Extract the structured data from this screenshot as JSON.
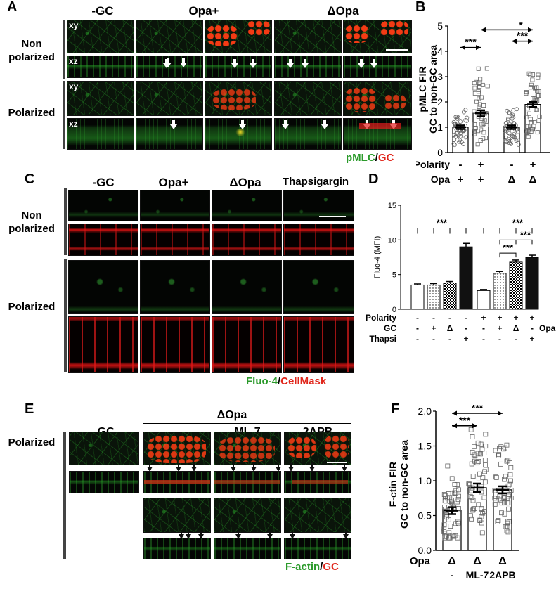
{
  "panels": {
    "A": {
      "letter": "A",
      "columns": [
        "-GC",
        "Opa+",
        "ΔOpa"
      ],
      "rows": [
        "Non polarized",
        "Polarized"
      ],
      "view_labels": {
        "xy": "xy",
        "xz": "xz"
      },
      "legend_green": "pMLC",
      "legend_sep": "/",
      "legend_red": "GC"
    },
    "C": {
      "letter": "C",
      "columns": [
        "-GC",
        "Opa+",
        "ΔOpa",
        "Thapsigargin"
      ],
      "rows": [
        "Non polarized",
        "Polarized"
      ],
      "legend_green": "Fluo-4",
      "legend_sep": "/",
      "legend_red": "CellMask"
    },
    "E": {
      "letter": "E",
      "group_label": "ΔOpa",
      "columns": [
        "-GC",
        "-",
        "ML-7",
        "2APB"
      ],
      "row": "Polarized",
      "legend_green": "F-actin",
      "legend_sep": "/",
      "legend_red": "GC"
    },
    "B": {
      "letter": "B"
    },
    "D": {
      "letter": "D"
    },
    "F": {
      "letter": "F"
    }
  },
  "chart_data": [
    {
      "id": "B",
      "type": "bar",
      "ylabel": "pMLC FIR\nGC to non-GC area",
      "ylim": [
        0,
        5
      ],
      "yticks": [
        "0",
        "1",
        "2",
        "3",
        "4",
        "5"
      ],
      "values": [
        1.0,
        1.55,
        1.0,
        1.9
      ],
      "errors": [
        0.07,
        0.12,
        0.07,
        0.1
      ],
      "scatter_marker": "open-circle / open-square",
      "condition_rows": [
        {
          "label": "Polarity",
          "values": [
            "-",
            "+",
            "-",
            "+"
          ]
        },
        {
          "label": "Opa",
          "values": [
            "+",
            "+",
            "Δ",
            "Δ"
          ]
        }
      ],
      "significance": [
        {
          "pair": [
            0,
            1
          ],
          "label": "***"
        },
        {
          "pair": [
            1,
            3
          ],
          "label": "*"
        },
        {
          "pair": [
            2,
            3
          ],
          "label": "***"
        }
      ]
    },
    {
      "id": "D",
      "type": "bar",
      "ylabel": "Fluo-4 (MFI)",
      "ylim": [
        0,
        15
      ],
      "yticks": [
        "0",
        "5",
        "10",
        "15"
      ],
      "values": [
        3.5,
        3.5,
        3.8,
        9.0,
        2.7,
        5.2,
        6.8,
        7.5
      ],
      "errors": [
        0.15,
        0.2,
        0.2,
        0.5,
        0.15,
        0.25,
        0.3,
        0.3
      ],
      "fills": [
        "white",
        "dots",
        "checker",
        "black",
        "white",
        "dots",
        "checker",
        "black"
      ],
      "condition_rows": [
        {
          "label": "Polarity",
          "values": [
            "-",
            "-",
            "-",
            "-",
            "+",
            "+",
            "+",
            "+"
          ]
        },
        {
          "label": "GC",
          "values": [
            "-",
            "+",
            "Δ",
            "-",
            "-",
            "+",
            "Δ",
            "-"
          ],
          "suffix": "Opa"
        },
        {
          "label": "Thapsi",
          "values": [
            "-",
            "-",
            "-",
            "+",
            "-",
            "-",
            "-",
            "+"
          ]
        }
      ],
      "significance_labels": [
        "***",
        "***",
        "***",
        "***"
      ]
    },
    {
      "id": "F",
      "type": "bar",
      "ylabel": "F-ctin FIR\nGC to non-GC area",
      "ylim": [
        0,
        2.0
      ],
      "yticks": [
        "0.0",
        "0.5",
        "1.0",
        "1.5",
        "2.0"
      ],
      "values": [
        0.57,
        0.9,
        0.87
      ],
      "errors": [
        0.05,
        0.06,
        0.05
      ],
      "opa_label": "Opa",
      "categories_top": [
        "Δ",
        "Δ",
        "Δ"
      ],
      "categories_bottom": [
        "-",
        "ML-7",
        "2APB"
      ],
      "significance": [
        {
          "pair": [
            0,
            1
          ],
          "label": "***"
        },
        {
          "pair": [
            0,
            2
          ],
          "label": "***"
        }
      ]
    }
  ]
}
